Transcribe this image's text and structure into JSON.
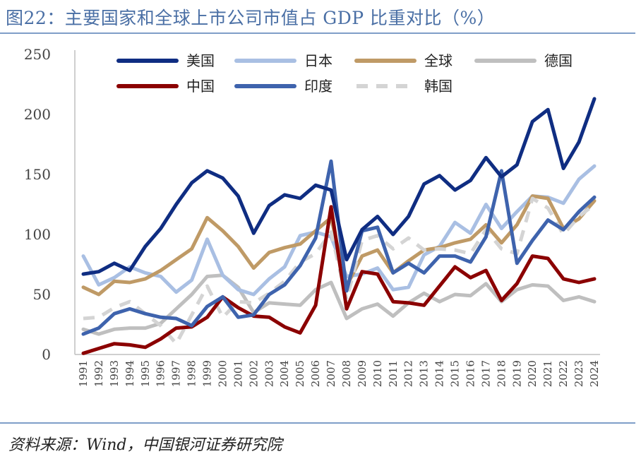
{
  "title": "图22：主要国家和全球上市公司市值占 GDP 比重对比（%）",
  "source": "资料来源：Wind，中国银河证券研究院",
  "chart_data": {
    "type": "line",
    "title": "主要国家和全球上市公司市值占 GDP 比重对比（%）",
    "xlabel": "",
    "ylabel": "%",
    "ylim": [
      0,
      250
    ],
    "yticks": [
      "0",
      "50",
      "100",
      "150",
      "200",
      "250"
    ],
    "legend_position": "top",
    "x": [
      "1991",
      "1992",
      "1993",
      "1994",
      "1995",
      "1996",
      "1997",
      "1998",
      "1999",
      "2000",
      "2001",
      "2002",
      "2003",
      "2004",
      "2005",
      "2006",
      "2007",
      "2008",
      "2009",
      "2010",
      "2011",
      "2012",
      "2013",
      "2014",
      "2015",
      "2016",
      "2017",
      "2018",
      "2019",
      "2020",
      "2021",
      "2022",
      "2023",
      "2024"
    ],
    "series": [
      {
        "name": "美国",
        "color": "#0f2d82",
        "dash": false,
        "values": [
          67,
          69,
          76,
          70,
          90,
          105,
          125,
          143,
          153,
          147,
          132,
          101,
          124,
          133,
          130,
          141,
          137,
          79,
          104,
          115,
          100,
          115,
          142,
          149,
          137,
          145,
          164,
          148,
          158,
          194,
          204,
          155,
          177,
          213
        ]
      },
      {
        "name": "日本",
        "color": "#a9bfe3",
        "dash": false,
        "values": [
          82,
          58,
          64,
          73,
          68,
          65,
          52,
          62,
          96,
          66,
          54,
          50,
          63,
          73,
          99,
          102,
          98,
          65,
          67,
          72,
          54,
          56,
          83,
          90,
          110,
          101,
          125,
          105,
          119,
          132,
          131,
          126,
          146,
          157
        ]
      },
      {
        "name": "全球",
        "color": "#bf9a66",
        "dash": false,
        "values": [
          56,
          50,
          61,
          60,
          63,
          70,
          79,
          88,
          114,
          103,
          90,
          72,
          85,
          89,
          92,
          103,
          114,
          57,
          82,
          87,
          68,
          78,
          87,
          89,
          93,
          96,
          108,
          93,
          108,
          132,
          130,
          105,
          113,
          128
        ]
      },
      {
        "name": "德国",
        "color": "#bfbfbf",
        "dash": false,
        "values": [
          21,
          17,
          21,
          22,
          22,
          26,
          38,
          50,
          65,
          66,
          56,
          35,
          43,
          42,
          41,
          54,
          60,
          30,
          38,
          42,
          32,
          43,
          51,
          44,
          50,
          49,
          59,
          44,
          54,
          58,
          57,
          45,
          48,
          44
        ]
      },
      {
        "name": "中国",
        "color": "#8b0000",
        "dash": false,
        "values": [
          1,
          5,
          9,
          8,
          6,
          13,
          22,
          23,
          31,
          48,
          39,
          32,
          31,
          23,
          18,
          41,
          123,
          38,
          69,
          67,
          44,
          43,
          41,
          57,
          73,
          64,
          70,
          45,
          59,
          82,
          80,
          63,
          60,
          63
        ]
      },
      {
        "name": "印度",
        "color": "#3e63ad",
        "dash": false,
        "values": [
          17,
          22,
          34,
          38,
          34,
          31,
          30,
          24,
          40,
          48,
          31,
          33,
          50,
          58,
          74,
          97,
          161,
          53,
          103,
          106,
          68,
          76,
          68,
          82,
          82,
          77,
          98,
          153,
          76,
          95,
          112,
          104,
          119,
          131
        ]
      },
      {
        "name": "韩国",
        "color": "#d4d4d4",
        "dash": true,
        "values": [
          30,
          31,
          39,
          44,
          34,
          24,
          9,
          33,
          57,
          31,
          44,
          43,
          51,
          61,
          77,
          84,
          102,
          46,
          95,
          99,
          88,
          97,
          87,
          88,
          87,
          84,
          104,
          88,
          84,
          130,
          122,
          100,
          115,
          125
        ]
      }
    ]
  }
}
